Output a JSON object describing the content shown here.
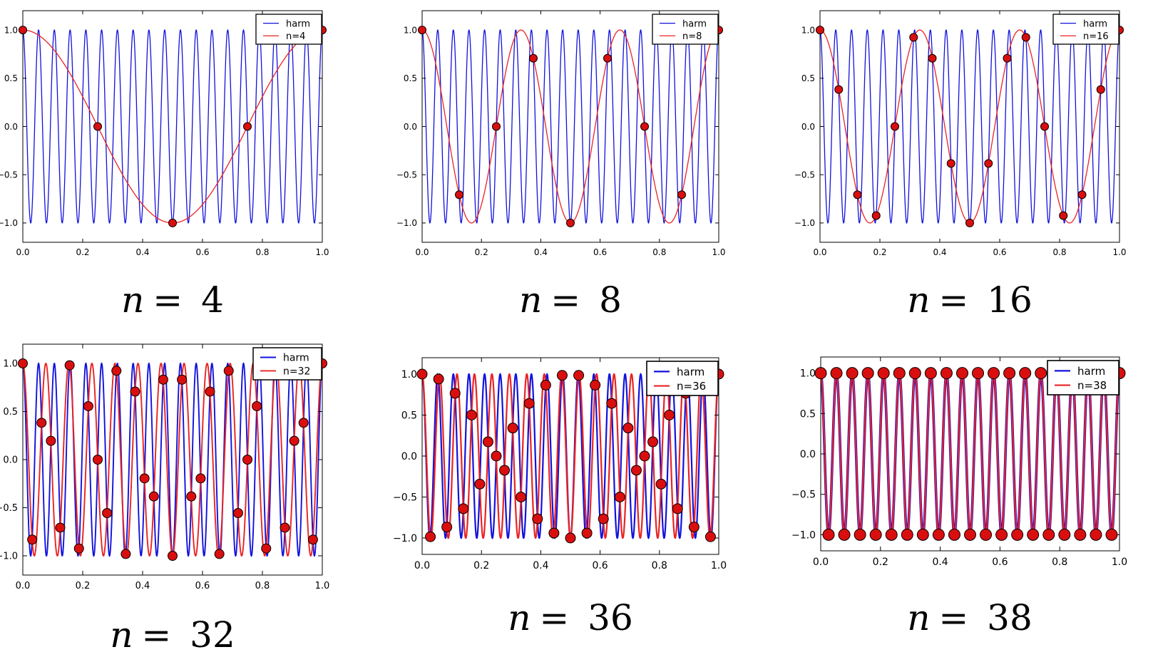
{
  "figure": {
    "background": "#ffffff",
    "style": {
      "harm_color": "#1212dd",
      "alias_color": "#ea2323",
      "marker_fill": "#d90f0f",
      "marker_edge": "#000000",
      "axes_color": "#000000",
      "legend_bg": "#ffffff",
      "legend_border": "#000000"
    }
  },
  "chart_data": {
    "type": "line",
    "title": "",
    "harmonic_frequency": 19,
    "x_range": [
      0,
      1
    ],
    "ylim": [
      -1.2,
      1.2
    ],
    "grid": false,
    "legend_position": "upper right",
    "x_ticks": [
      0,
      0.2,
      0.4,
      0.6,
      0.8,
      1.0
    ],
    "x_tick_labels": [
      "0.0",
      "0.2",
      "0.4",
      "0.6",
      "0.8",
      "1.0"
    ],
    "y_ticks": [
      -1.0,
      -0.5,
      0.0,
      0.5,
      1.0
    ],
    "y_tick_labels": [
      "−1.0",
      "−0.5",
      "0.0",
      "0.5",
      "1.0"
    ],
    "charts": [
      {
        "n": 4,
        "caption_lhs": "n",
        "caption_rhs": "= 4",
        "series": [
          {
            "name": "harm",
            "type": "cosine",
            "frequency": 19,
            "amplitude": 1,
            "color_key": "harm"
          },
          {
            "name": "n=4",
            "type": "cosine",
            "frequency": 1,
            "amplitude": 1,
            "color_key": "alias"
          }
        ],
        "samples": {
          "x": [
            0,
            0.25,
            0.5,
            0.75,
            1
          ],
          "y": [
            1,
            0,
            -1,
            0,
            1
          ]
        }
      },
      {
        "n": 8,
        "caption_lhs": "n",
        "caption_rhs": "= 8",
        "series": [
          {
            "name": "harm",
            "type": "cosine",
            "frequency": 19,
            "amplitude": 1,
            "color_key": "harm"
          },
          {
            "name": "n=8",
            "type": "cosine",
            "frequency": 3,
            "amplitude": 1,
            "color_key": "alias"
          }
        ],
        "samples": {
          "x": [
            0,
            0.125,
            0.25,
            0.375,
            0.5,
            0.625,
            0.75,
            0.875,
            1
          ],
          "y": [
            1,
            -0.7071,
            0,
            0.7071,
            -1,
            0.7071,
            0,
            -0.7071,
            1
          ]
        }
      },
      {
        "n": 16,
        "caption_lhs": "n",
        "caption_rhs": "= 16",
        "series": [
          {
            "name": "harm",
            "type": "cosine",
            "frequency": 19,
            "amplitude": 1,
            "color_key": "harm"
          },
          {
            "name": "n=16",
            "type": "cosine",
            "frequency": 3,
            "amplitude": 1,
            "color_key": "alias"
          }
        ],
        "samples": {
          "x": [
            0,
            0.0625,
            0.125,
            0.1875,
            0.25,
            0.3125,
            0.375,
            0.4375,
            0.5,
            0.5625,
            0.625,
            0.6875,
            0.75,
            0.8125,
            0.875,
            0.9375,
            1
          ],
          "y": [
            1,
            0.3827,
            -0.7071,
            -0.9239,
            0,
            0.9239,
            0.7071,
            -0.3827,
            -1,
            -0.3827,
            0.7071,
            0.9239,
            0,
            -0.9239,
            -0.7071,
            0.3827,
            1
          ]
        }
      },
      {
        "n": 32,
        "caption_lhs": "n",
        "caption_rhs": "= 32",
        "series": [
          {
            "name": "harm",
            "type": "cosine",
            "frequency": 19,
            "amplitude": 1,
            "color_key": "harm"
          },
          {
            "name": "n=32",
            "type": "cosine",
            "frequency": 13,
            "amplitude": 1,
            "color_key": "alias"
          }
        ],
        "samples": {
          "x": [
            0,
            0.0313,
            0.0625,
            0.0938,
            0.125,
            0.1563,
            0.1875,
            0.2188,
            0.25,
            0.2813,
            0.3125,
            0.3438,
            0.375,
            0.4063,
            0.4375,
            0.4688,
            0.5,
            0.5313,
            0.5625,
            0.5938,
            0.625,
            0.6563,
            0.6875,
            0.7188,
            0.75,
            0.7813,
            0.8125,
            0.8438,
            0.875,
            0.9063,
            0.9375,
            0.9688,
            1
          ],
          "y": [
            1,
            -0.8315,
            0.3827,
            0.1951,
            -0.7071,
            0.9808,
            -0.9239,
            0.5556,
            0,
            -0.5556,
            0.9239,
            -0.9808,
            0.7071,
            -0.1951,
            -0.3827,
            0.8315,
            -1,
            0.8315,
            -0.3827,
            -0.1951,
            0.7071,
            -0.9808,
            0.9239,
            -0.5556,
            0,
            0.5556,
            -0.9239,
            0.9808,
            -0.7071,
            0.1951,
            0.3827,
            -0.8315,
            1
          ]
        }
      },
      {
        "n": 36,
        "caption_lhs": "n",
        "caption_rhs": "= 36",
        "series": [
          {
            "name": "harm",
            "type": "cosine",
            "frequency": 19,
            "amplitude": 1,
            "color_key": "harm"
          },
          {
            "name": "n=36",
            "type": "cosine",
            "frequency": 17,
            "amplitude": 1,
            "color_key": "alias"
          }
        ],
        "samples": {
          "x": [
            0,
            0.0278,
            0.0556,
            0.0833,
            0.1111,
            0.1389,
            0.1667,
            0.1944,
            0.2222,
            0.25,
            0.2778,
            0.3056,
            0.3333,
            0.3611,
            0.3889,
            0.4167,
            0.4444,
            0.4722,
            0.5,
            0.5278,
            0.5556,
            0.5833,
            0.6111,
            0.6389,
            0.6667,
            0.6944,
            0.7222,
            0.75,
            0.7778,
            0.8056,
            0.8333,
            0.8611,
            0.8889,
            0.9167,
            0.9444,
            0.9722,
            1
          ],
          "y": [
            1,
            -0.9848,
            0.9397,
            -0.866,
            0.766,
            -0.6428,
            0.5,
            -0.342,
            0.1736,
            0,
            -0.1736,
            0.342,
            -0.5,
            0.6428,
            -0.766,
            0.866,
            -0.9397,
            0.9848,
            -1,
            0.9848,
            -0.9397,
            0.866,
            -0.766,
            0.6428,
            -0.5,
            0.342,
            -0.1736,
            0,
            0.1736,
            -0.342,
            0.5,
            -0.6428,
            0.766,
            -0.866,
            0.9397,
            -0.9848,
            1
          ]
        }
      },
      {
        "n": 38,
        "caption_lhs": "n",
        "caption_rhs": "= 38",
        "series": [
          {
            "name": "harm",
            "type": "cosine",
            "frequency": 19,
            "amplitude": 1,
            "color_key": "harm"
          },
          {
            "name": "n=38",
            "type": "cosine",
            "frequency": 19,
            "amplitude": 1,
            "color_key": "alias"
          }
        ],
        "samples": {
          "x": [
            0,
            0.0263,
            0.0526,
            0.0789,
            0.1053,
            0.1316,
            0.1579,
            0.1842,
            0.2105,
            0.2368,
            0.2632,
            0.2895,
            0.3158,
            0.3421,
            0.3684,
            0.3947,
            0.4211,
            0.4474,
            0.4737,
            0.5,
            0.5263,
            0.5526,
            0.5789,
            0.6053,
            0.6316,
            0.6579,
            0.6842,
            0.7105,
            0.7368,
            0.7632,
            0.7895,
            0.8158,
            0.8421,
            0.8684,
            0.8947,
            0.9211,
            0.9474,
            0.9737,
            1
          ],
          "y": [
            1,
            -1,
            1,
            -1,
            1,
            -1,
            1,
            -1,
            1,
            -1,
            1,
            -1,
            1,
            -1,
            1,
            -1,
            1,
            -1,
            1,
            -1,
            1,
            -1,
            1,
            -1,
            1,
            -1,
            1,
            -1,
            1,
            -1,
            1,
            -1,
            1,
            -1,
            1,
            -1,
            1,
            -1,
            1
          ]
        }
      }
    ]
  }
}
